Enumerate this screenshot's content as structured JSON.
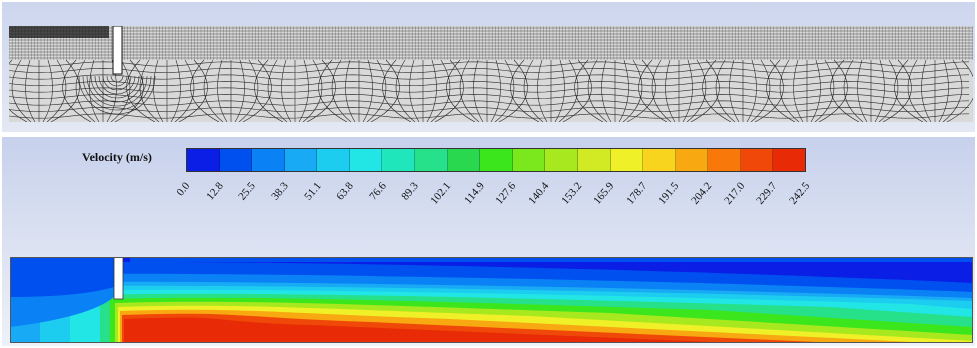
{
  "figure": {
    "mesh_panel": {
      "mesh_line_color": "#2a2a2a",
      "background_color": "#d9d9d9"
    },
    "contour_panel": {
      "legend_title": "Velocity (m/s)",
      "tick_labels": [
        "0.0",
        "12.8",
        "25.5",
        "38.3",
        "51.1",
        "63.8",
        "76.6",
        "89.3",
        "102.1",
        "114.9",
        "127.6",
        "140.4",
        "153.2",
        "165.9",
        "178.7",
        "191.5",
        "204.2",
        "217.0",
        "229.7",
        "242.5"
      ],
      "colormap": [
        "#0a1ee6",
        "#0050f0",
        "#0a82f5",
        "#18aaf5",
        "#1ccdf0",
        "#22e6e6",
        "#20e6bb",
        "#26e08a",
        "#2ad850",
        "#3ce61c",
        "#7ae81c",
        "#a8e81e",
        "#d2ea24",
        "#f0f028",
        "#f8d41e",
        "#f8a810",
        "#f8780a",
        "#f04808",
        "#e82a06"
      ]
    }
  }
}
